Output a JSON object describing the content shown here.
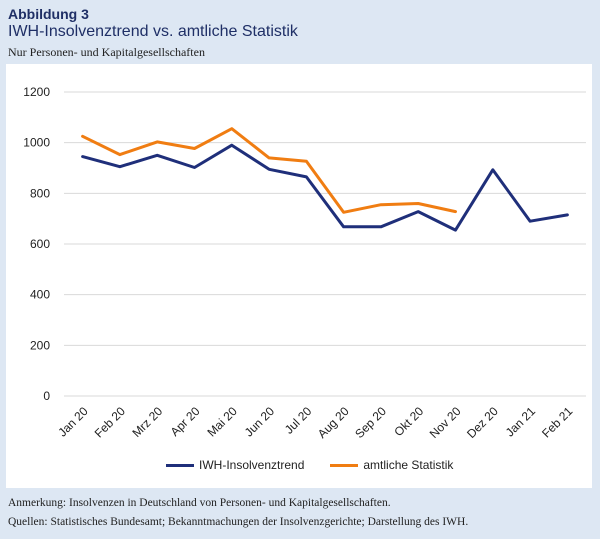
{
  "header": {
    "figure_label": "Abbildung 3",
    "title": "IWH-Insolvenztrend vs. amtliche Statistik",
    "subtitle": "Nur Personen- und Kapitalgesellschaften"
  },
  "colors": {
    "background": "#dde7f3",
    "panel": "#ffffff",
    "series_iwh": "#1f2f7a",
    "series_amtlich": "#f07d12",
    "grid": "#d9d9d9"
  },
  "chart_data": {
    "type": "line",
    "categories": [
      "Jan 20",
      "Feb 20",
      "Mrz 20",
      "Apr 20",
      "Mai 20",
      "Jun 20",
      "Jul 20",
      "Aug 20",
      "Sep 20",
      "Okt 20",
      "Nov 20",
      "Dez 20",
      "Jan 21",
      "Feb 21"
    ],
    "series": [
      {
        "name": "IWH-Insolvenztrend",
        "color": "#1f2f7a",
        "values": [
          945,
          905,
          950,
          902,
          990,
          895,
          865,
          668,
          668,
          728,
          655,
          893,
          690,
          715
        ]
      },
      {
        "name": "amtliche Statistik",
        "color": "#f07d12",
        "values": [
          1025,
          953,
          1003,
          977,
          1055,
          940,
          927,
          725,
          755,
          760,
          728,
          null,
          null,
          null
        ]
      }
    ],
    "ylim": [
      0,
      1200
    ],
    "yticks": [
      0,
      200,
      400,
      600,
      800,
      1000,
      1200
    ],
    "grid": true,
    "legend_position": "bottom"
  },
  "footer": {
    "note": "Anmerkung: Insolvenzen in Deutschland von Personen- und Kapitalgesellschaften.",
    "sources": "Quellen: Statistisches Bundesamt; Bekanntmachungen der Insolvenzgerichte; Darstellung des IWH."
  }
}
